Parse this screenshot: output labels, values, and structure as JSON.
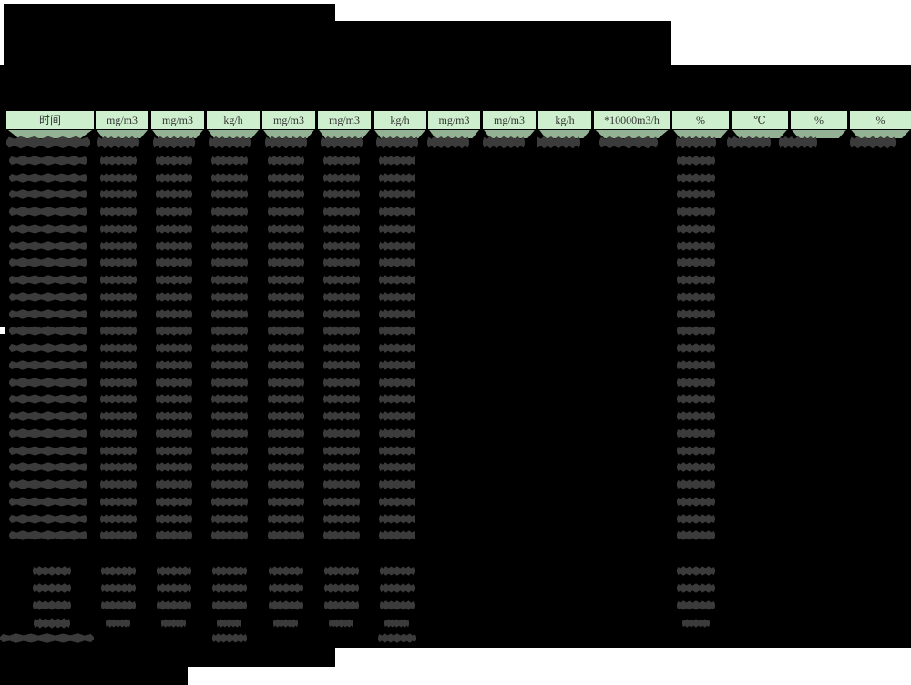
{
  "colors": {
    "page_background": "#ffffff",
    "redaction_black": "#000000",
    "header_cell_green": "#cdefcd",
    "header_shadow_green": "#93b193",
    "redacted_text_gray": "#3b3b3b",
    "header_text": "#333333"
  },
  "table": {
    "headers": [
      {
        "label": "时间"
      },
      {
        "label": "mg/m3"
      },
      {
        "label": "mg/m3"
      },
      {
        "label": "kg/h"
      },
      {
        "label": "mg/m3"
      },
      {
        "label": "mg/m3"
      },
      {
        "label": "kg/h"
      },
      {
        "label": "mg/m3"
      },
      {
        "label": "mg/m3"
      },
      {
        "label": "kg/h"
      },
      {
        "label": "*10000m3/h"
      },
      {
        "label": "%"
      },
      {
        "label": "℃"
      },
      {
        "label": "%"
      },
      {
        "label": "%"
      }
    ],
    "data_row_count": 24,
    "summary_row_count": 4,
    "footer_row_count": 1
  }
}
